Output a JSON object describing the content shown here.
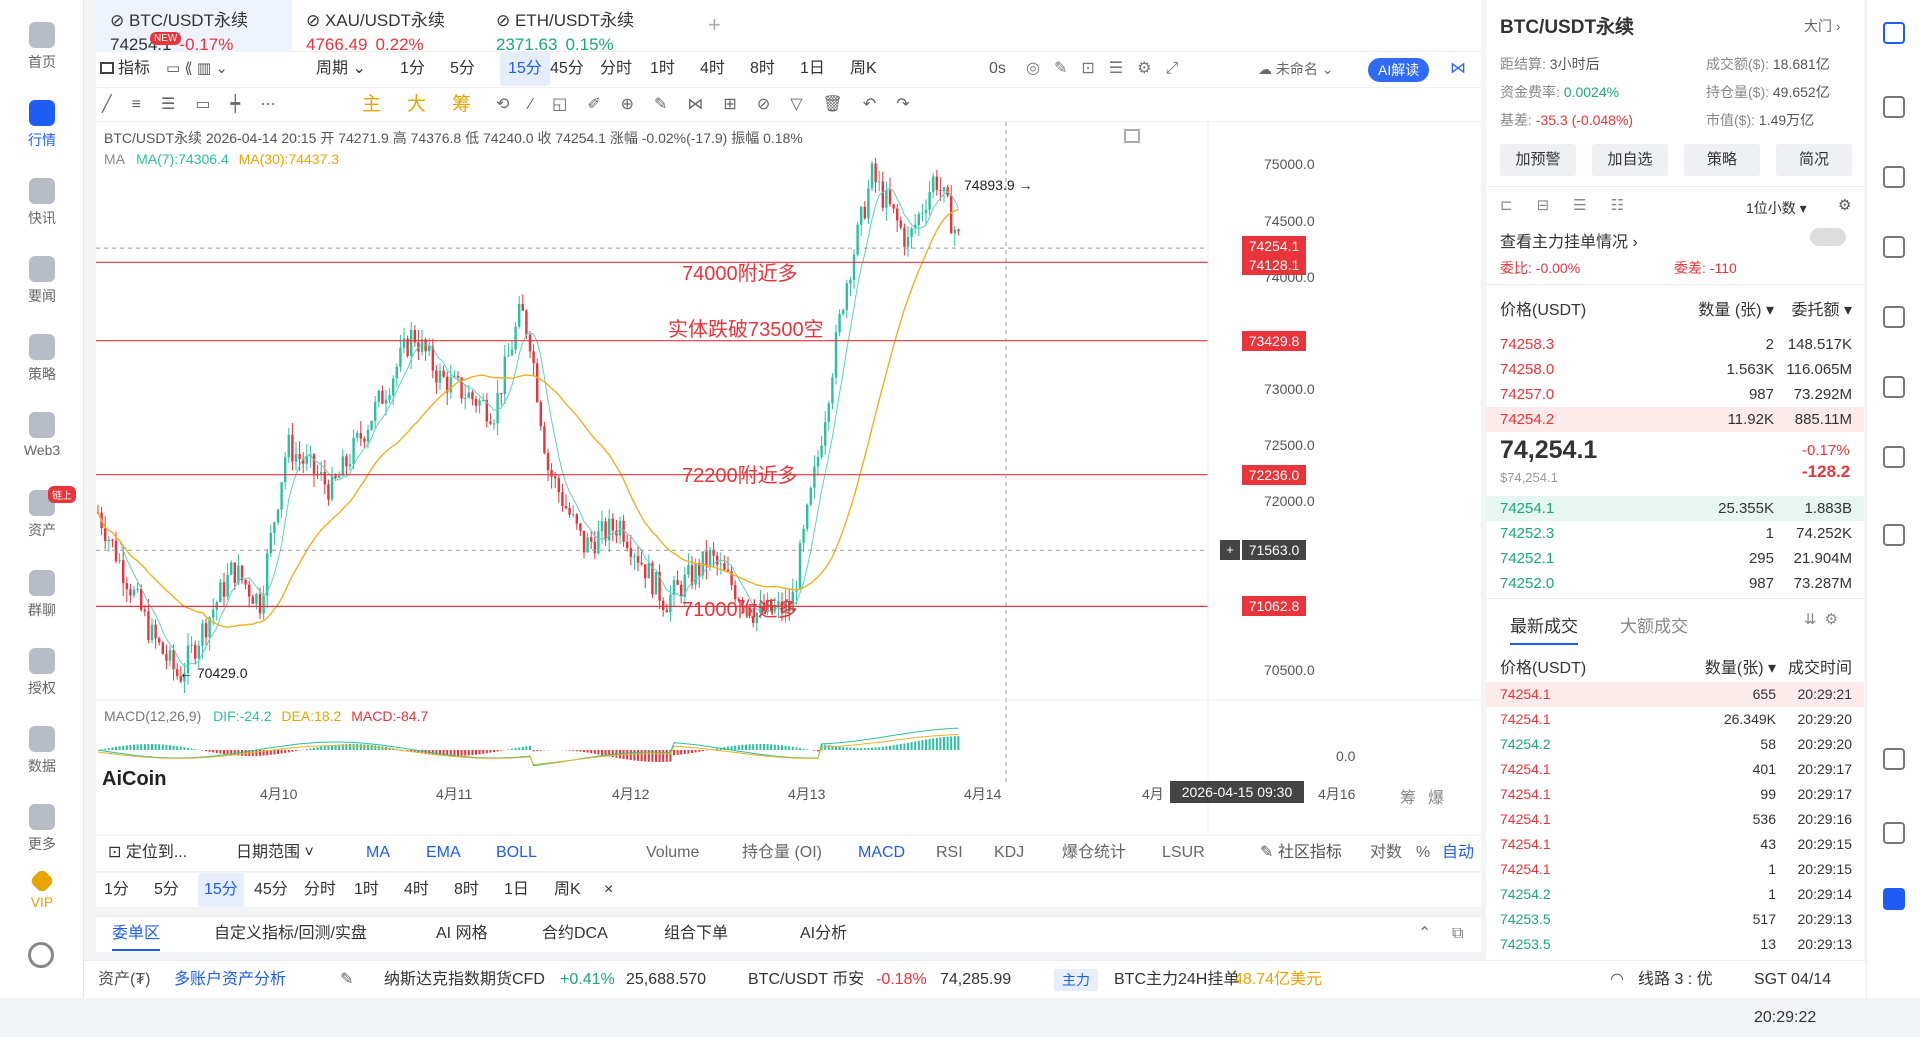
{
  "nav": {
    "items": [
      {
        "label": "首页",
        "icon": "home-icon"
      },
      {
        "label": "行情",
        "icon": "chart-bars-icon",
        "active": true
      },
      {
        "label": "快讯",
        "icon": "news-icon"
      },
      {
        "label": "要闻",
        "icon": "headline-icon"
      },
      {
        "label": "策略",
        "icon": "robot-icon"
      },
      {
        "label": "Web3",
        "icon": "web3-icon"
      },
      {
        "label": "资产",
        "icon": "wallet-icon",
        "badge": "链上"
      },
      {
        "label": "群聊",
        "icon": "chat-icon"
      },
      {
        "label": "授权",
        "icon": "key-icon"
      },
      {
        "label": "数据",
        "icon": "data-icon"
      },
      {
        "label": "更多",
        "icon": "grid-icon"
      },
      {
        "label": "VIP",
        "icon": "vip-icon"
      }
    ]
  },
  "tabs": [
    {
      "name": "BTC/USDT永续",
      "price": "74254.1",
      "change": "-0.17%",
      "dir": "down",
      "active": true,
      "badge": "NEW"
    },
    {
      "name": "XAU/USDT永续",
      "price": "4766.49",
      "change": "0.22%",
      "dir": "down"
    },
    {
      "name": "ETH/USDT永续",
      "price": "2371.63",
      "change": "0.15%",
      "dir": "up"
    }
  ],
  "tab_add": "+",
  "toolbar1": {
    "indicator": "指标",
    "period": "周期",
    "intervals": [
      "1分",
      "5分",
      "15分",
      "45分",
      "分时",
      "1时",
      "4时",
      "8时",
      "1日",
      "周K"
    ],
    "selected": "15分",
    "countdown": "0s",
    "layout_name": "未命名",
    "ai_button": "AI解读"
  },
  "toolbar2": {
    "main": "主",
    "big": "大",
    "chips": "筹"
  },
  "chart": {
    "legend_line": "BTC/USDT永续  2026-04-14 20:15  开 74271.9  高 74376.8  低 74240.0  收 74254.1  涨幅 -0.02%(-17.9)  振幅 0.18%",
    "ma_label": "MA",
    "ma7": "MA(7):74306.4",
    "ma30": "MA(30):74437.3",
    "macd_label": "MACD(12,26,9)",
    "dif": "DIF:-24.2",
    "dea": "DEA:18.2",
    "macd": "MACD:-84.7",
    "watermark": "AiCoin",
    "high_marker": "74893.9 →",
    "low_marker": "← 70429.0",
    "annotations": [
      "74000附近多",
      "实体跌破73500空",
      "72200附近多",
      "71000附近多"
    ],
    "price_ticks": [
      "75000.0",
      "74500.0",
      "74000.0",
      "73000.0",
      "72500.0",
      "72000.0",
      "70500.0"
    ],
    "macd_tick": "0.0",
    "price_tags": [
      "74254.1",
      "74128.1",
      "73429.8",
      "72236.0",
      "71062.8",
      "71563.0"
    ],
    "date_ticks": [
      "4月10",
      "4月11",
      "4月12",
      "4月13",
      "4月14",
      "4月",
      "4月16"
    ],
    "crosshair_time": "2026-04-15 09:30",
    "bottom_right": [
      "筹",
      "爆"
    ]
  },
  "chart_data": {
    "type": "line",
    "title": "",
    "x": [
      "4月10",
      "4月11",
      "4月12",
      "4月13",
      "4月14"
    ],
    "series": [],
    "horizontal_lines": [
      74128.1,
      73429.8,
      72236.0,
      71062.8
    ],
    "high": 74893.9,
    "low": 70429.0,
    "last": 74254.1,
    "ylim": [
      70300,
      75200
    ]
  },
  "indicator_bar": {
    "locate": "定位到...",
    "date_range": "日期范围",
    "items": [
      "MA",
      "EMA",
      "BOLL",
      "Volume",
      "持仓量 (OI)",
      "MACD",
      "RSI",
      "KDJ",
      "爆仓统计",
      "LSUR"
    ],
    "community": "社区指标",
    "log": "对数",
    "percent": "%",
    "auto": "自动"
  },
  "interval_bar": [
    "1分",
    "5分",
    "15分",
    "45分",
    "分时",
    "1时",
    "4时",
    "8时",
    "1日",
    "周K",
    "×"
  ],
  "bottom_tabs": [
    "委单区",
    "自定义指标/回测/实盘",
    "AI 网格",
    "合约DCA",
    "组合下单",
    "AI分析"
  ],
  "status": {
    "assets": "资产(₮)",
    "multi": "多账户资产分析",
    "t1_name": "纳斯达克指数期货CFD",
    "t1_chg": "+0.41%",
    "t1_px": "25,688.570",
    "t2_name": "BTC/USDT 币安",
    "t2_chg": "-0.18%",
    "t2_px": "74,285.99",
    "main_tag": "主力",
    "main_text": "BTC主力24H挂单",
    "main_val": "48.74亿美元",
    "line": "线路 3 : 优",
    "time": "SGT 04/14 20:29:22"
  },
  "right": {
    "title": "BTC/USDT永续",
    "door": "大门",
    "info": [
      [
        "距结算: 3小时后",
        "成交额($): 18.681亿"
      ],
      [
        "资金费率: 0.0024%",
        "持仓量($): 49.652亿"
      ],
      [
        "基差: -35.3 (-0.048%)",
        "市值($): 1.49万亿"
      ]
    ],
    "buttons": [
      "加预警",
      "加自选",
      "策略",
      "简况"
    ],
    "decimal": "1位小数",
    "mainforce": "查看主力挂单情况",
    "ratio": "委比: -0.00%",
    "diff": "委差: -110",
    "ob_header": [
      "价格(USDT)",
      "数量 (张)",
      "委托额"
    ],
    "asks": [
      [
        "74258.3",
        "2",
        "148.517K"
      ],
      [
        "74258.0",
        "1.563K",
        "116.065M"
      ],
      [
        "74257.0",
        "987",
        "73.292M"
      ],
      [
        "74254.2",
        "11.92K",
        "885.11M"
      ]
    ],
    "mid_price": "74,254.1",
    "mid_usd": "$74,254.1",
    "mid_chg": "-0.17%",
    "mid_abs": "-128.2",
    "bids": [
      [
        "74254.1",
        "25.355K",
        "1.883B"
      ],
      [
        "74252.3",
        "1",
        "74.252K"
      ],
      [
        "74252.1",
        "295",
        "21.904M"
      ],
      [
        "74252.0",
        "987",
        "73.287M"
      ]
    ],
    "trade_tabs": [
      "最新成交",
      "大额成交"
    ],
    "trade_header": [
      "价格(USDT)",
      "数量(张)",
      "成交时间"
    ],
    "trades": [
      [
        "74254.1",
        "655",
        "20:29:21",
        "down"
      ],
      [
        "74254.1",
        "26.349K",
        "20:29:20",
        "down"
      ],
      [
        "74254.2",
        "58",
        "20:29:20",
        "up"
      ],
      [
        "74254.1",
        "401",
        "20:29:17",
        "down"
      ],
      [
        "74254.1",
        "99",
        "20:29:17",
        "down"
      ],
      [
        "74254.1",
        "536",
        "20:29:16",
        "down"
      ],
      [
        "74254.1",
        "43",
        "20:29:15",
        "down"
      ],
      [
        "74254.1",
        "1",
        "20:29:15",
        "down"
      ],
      [
        "74254.2",
        "1",
        "20:29:14",
        "up"
      ],
      [
        "74253.5",
        "517",
        "20:29:13",
        "up"
      ],
      [
        "74253.5",
        "13",
        "20:29:13",
        "up"
      ]
    ]
  }
}
